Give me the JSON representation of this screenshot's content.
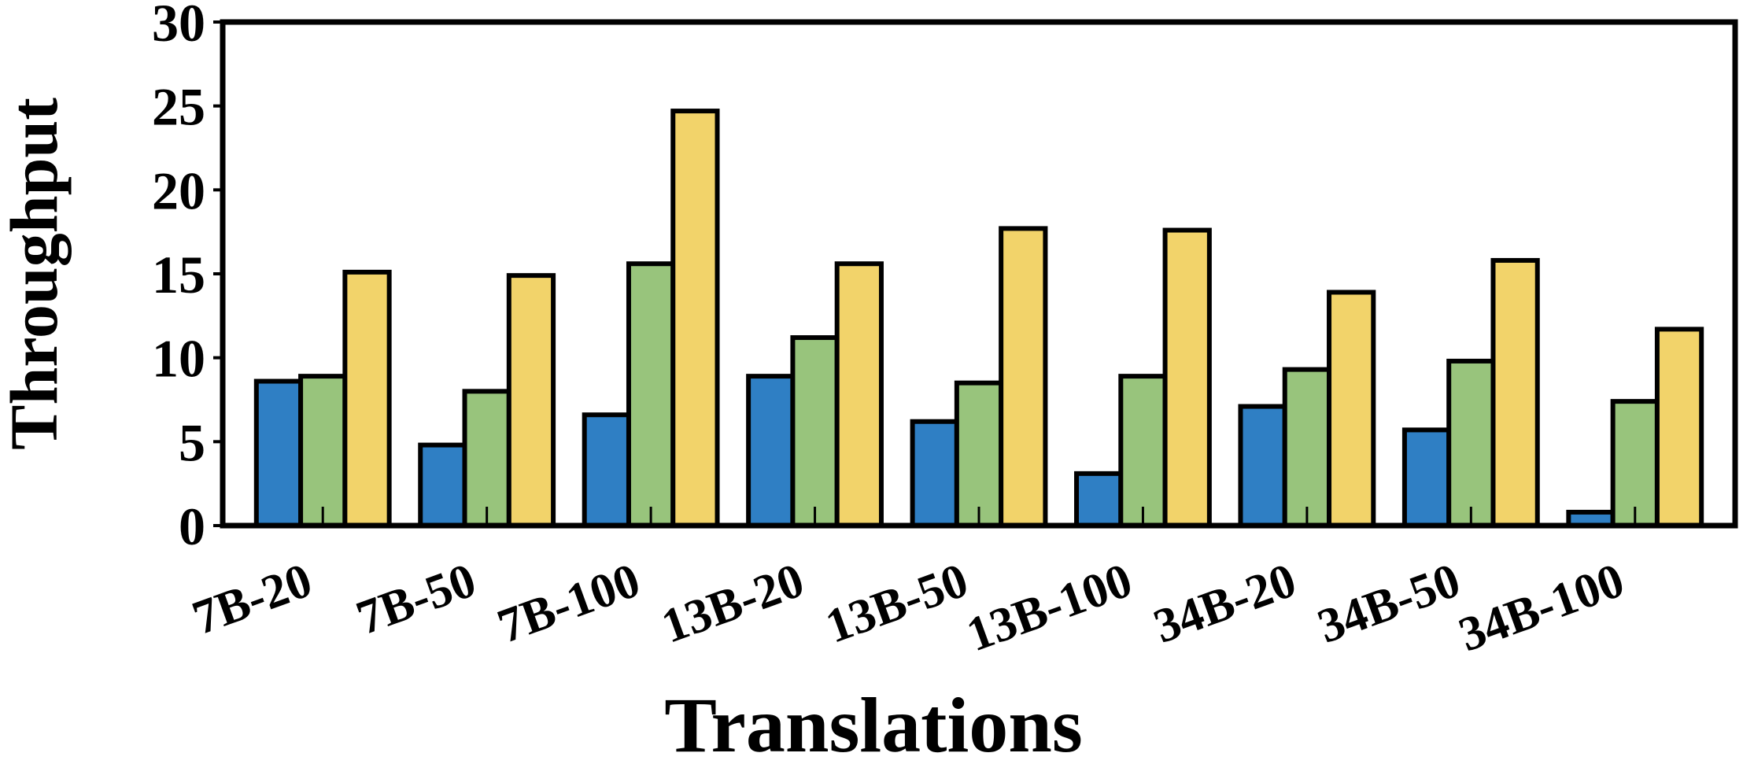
{
  "chart_data": {
    "type": "bar",
    "x_label": "Translations",
    "y_label": "Throughput",
    "categories": [
      "7B-20",
      "7B-50",
      "7B-100",
      "13B-20",
      "13B-50",
      "13B-100",
      "34B-20",
      "34B-50",
      "34B-100"
    ],
    "series": [
      {
        "color": "#2f7fc4",
        "values": [
          8.6,
          4.8,
          6.6,
          8.9,
          6.2,
          3.1,
          7.1,
          5.7,
          0.8
        ]
      },
      {
        "color": "#98c47c",
        "values": [
          8.9,
          8.0,
          15.6,
          11.2,
          8.5,
          8.9,
          9.3,
          9.8,
          7.4
        ]
      },
      {
        "color": "#f2d36a",
        "values": [
          15.1,
          14.9,
          24.7,
          15.6,
          17.7,
          17.6,
          13.9,
          15.8,
          11.7
        ]
      }
    ],
    "ylim": [
      0,
      30
    ],
    "yticks": [
      0,
      5,
      10,
      15,
      20,
      25,
      30
    ],
    "grid": false
  }
}
